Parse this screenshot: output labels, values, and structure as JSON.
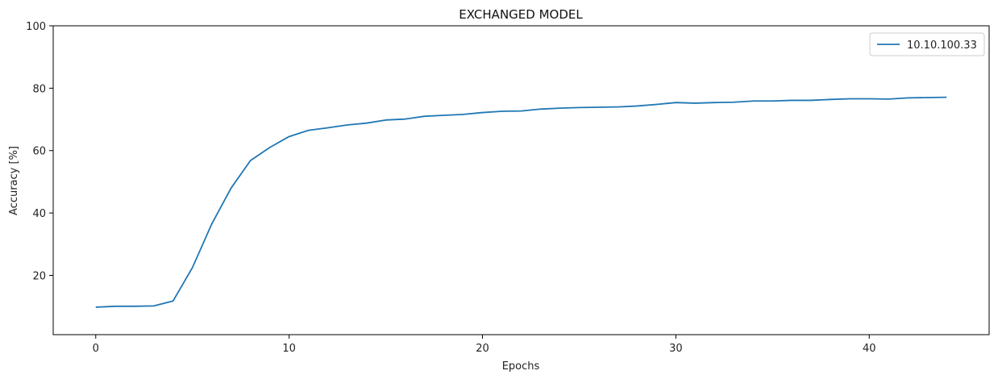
{
  "chart_data": {
    "type": "line",
    "title": "EXCHANGED MODEL",
    "xlabel": "Epochs",
    "ylabel": "Accuracy [%]",
    "xlim": [
      -2.2,
      46.2
    ],
    "ylim": [
      1,
      100
    ],
    "xticks": [
      0,
      10,
      20,
      30,
      40
    ],
    "yticks": [
      20,
      40,
      60,
      80,
      100
    ],
    "grid": false,
    "legend_position": "top-right",
    "series": [
      {
        "name": "10.10.100.33",
        "color": "#1f77b4",
        "x": [
          0,
          1,
          2,
          3,
          4,
          5,
          6,
          7,
          8,
          9,
          10,
          11,
          12,
          13,
          14,
          15,
          16,
          17,
          18,
          19,
          20,
          21,
          22,
          23,
          24,
          25,
          26,
          27,
          28,
          29,
          30,
          31,
          32,
          33,
          34,
          35,
          36,
          37,
          38,
          39,
          40,
          41,
          42,
          43,
          44
        ],
        "y": [
          9.8,
          10.1,
          10.1,
          10.2,
          11.8,
          22.5,
          36.5,
          48.0,
          56.8,
          61.0,
          64.5,
          66.5,
          67.3,
          68.2,
          68.8,
          69.8,
          70.1,
          71.0,
          71.3,
          71.6,
          72.2,
          72.6,
          72.7,
          73.3,
          73.6,
          73.8,
          73.9,
          74.0,
          74.3,
          74.8,
          75.4,
          75.2,
          75.4,
          75.5,
          75.9,
          75.9,
          76.1,
          76.1,
          76.4,
          76.6,
          76.6,
          76.5,
          76.9,
          77.0,
          77.1
        ]
      }
    ]
  }
}
